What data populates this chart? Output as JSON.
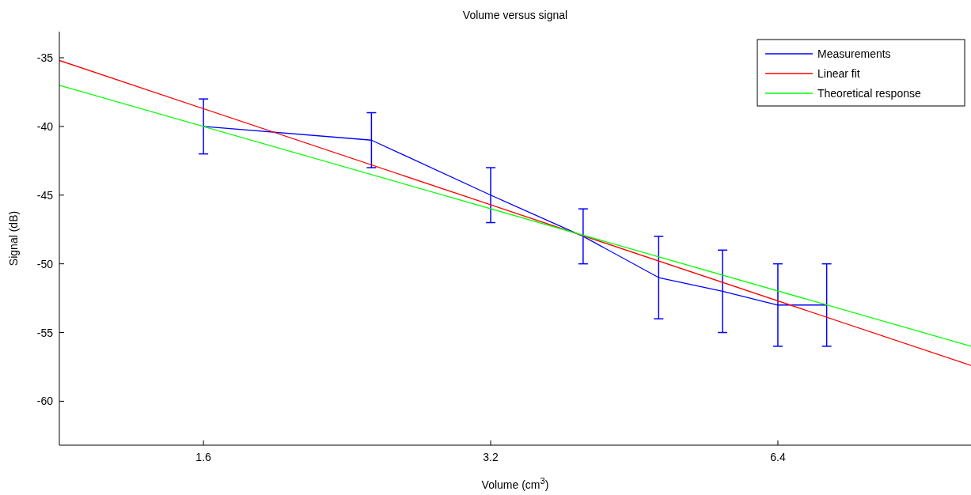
{
  "chart_data": {
    "type": "line",
    "title": "Volume versus signal",
    "xlabel": "Volume (cm$^{3}$)",
    "ylabel": "Signal (dB)",
    "log": "x",
    "xlim": [
      1.13,
      10.2
    ],
    "xticks": [
      1.6,
      3.2,
      6.4
    ],
    "ylim": [
      -63.2,
      -33.1
    ],
    "yticks": [
      -35,
      -40,
      -45,
      -50,
      -55,
      -60
    ],
    "grid": false,
    "legend": "top right",
    "marker": "none",
    "line_style": "solid",
    "series": [
      {
        "name": "Measurements",
        "color": "#0000ff",
        "x": [
          1.6,
          2.4,
          3.2,
          4.0,
          4.8,
          5.6,
          6.4,
          7.2
        ],
        "values": [
          -40,
          -41,
          -45,
          -48,
          -51,
          -52,
          -53,
          -53
        ],
        "errors": [
          2,
          2,
          2,
          2,
          3,
          3,
          3,
          3
        ]
      },
      {
        "name": "Linear fit",
        "color": "#ff0000",
        "x": [
          1.13,
          10.2
        ],
        "values": [
          -35.2,
          -57.4
        ]
      },
      {
        "name": "Theoretical response",
        "color": "#00ff00",
        "x": [
          1.13,
          10.2
        ],
        "values": [
          -37.0,
          -56.0
        ]
      }
    ]
  }
}
